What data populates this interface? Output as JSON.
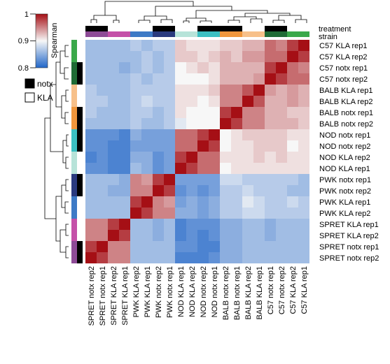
{
  "chart_data": {
    "type": "heatmap",
    "title": "",
    "metric_label": "Spearman",
    "color_scale": {
      "min": 0.8,
      "max": 1.0,
      "ticks": [
        "0.8",
        "0.9",
        "1"
      ],
      "low_color": "#2166c8",
      "mid_color": "#f7f7f7",
      "high_color": "#a50f15"
    },
    "annotation_tracks": {
      "treatment_label": "treatment",
      "strain_label": "strain"
    },
    "legend": [
      {
        "label": "notx",
        "color": "#000000"
      },
      {
        "label": "KLA",
        "color": "#ffffff"
      }
    ],
    "strain_colors": {
      "SPRET": "#8e4b97",
      "PWK": "#2a3a7e",
      "NOD": "#3bbfc2",
      "BALB": "#f0963c",
      "C57": "#3aa84a",
      "NOD_light": "#b7e3d9",
      "PWK_light": "#3d7ac6",
      "SPRET_light": "#c450a8",
      "BALB_light": "#f7c08a",
      "C57_light": "#1f6b35"
    },
    "columns": [
      {
        "label": "SPRET notx rep2",
        "strain": "SPRET",
        "treatment": "notx"
      },
      {
        "label": "SPRET notx rep1",
        "strain": "SPRET",
        "treatment": "notx"
      },
      {
        "label": "SPRET KLA rep2",
        "strain": "SPRET",
        "treatment": "KLA"
      },
      {
        "label": "SPRET KLA rep1",
        "strain": "SPRET",
        "treatment": "KLA"
      },
      {
        "label": "PWK KLA rep2",
        "strain": "PWK",
        "treatment": "KLA"
      },
      {
        "label": "PWK KLA rep1",
        "strain": "PWK",
        "treatment": "KLA"
      },
      {
        "label": "PWK notx rep2",
        "strain": "PWK",
        "treatment": "notx"
      },
      {
        "label": "PWK notx rep1",
        "strain": "PWK",
        "treatment": "notx"
      },
      {
        "label": "NOD KLA rep1",
        "strain": "NOD",
        "treatment": "KLA"
      },
      {
        "label": "NOD KLA rep2",
        "strain": "NOD",
        "treatment": "KLA"
      },
      {
        "label": "NOD notx rep2",
        "strain": "NOD",
        "treatment": "notx"
      },
      {
        "label": "NOD notx rep1",
        "strain": "NOD",
        "treatment": "notx"
      },
      {
        "label": "BALB notx rep2",
        "strain": "BALB",
        "treatment": "notx"
      },
      {
        "label": "BALB notx rep1",
        "strain": "BALB",
        "treatment": "notx"
      },
      {
        "label": "BALB KLA rep2",
        "strain": "BALB",
        "treatment": "KLA"
      },
      {
        "label": "BALB KLA rep1",
        "strain": "BALB",
        "treatment": "KLA"
      },
      {
        "label": "C57 notx rep1",
        "strain": "C57",
        "treatment": "notx"
      },
      {
        "label": "C57 notx rep2",
        "strain": "C57",
        "treatment": "notx"
      },
      {
        "label": "C57 KLA rep2",
        "strain": "C57",
        "treatment": "KLA"
      },
      {
        "label": "C57 KLA rep1",
        "strain": "C57",
        "treatment": "KLA"
      }
    ],
    "rows": [
      "C57 KLA rep1",
      "C57 KLA rep2",
      "C57 notx rep1",
      "C57 notx rep2",
      "BALB KLA rep1",
      "BALB KLA rep2",
      "BALB notx rep1",
      "BALB notx rep2",
      "NOD notx rep1",
      "NOD notx rep2",
      "NOD KLA rep2",
      "NOD KLA rep1",
      "PWK notx rep1",
      "PWK notx rep2",
      "PWK KLA rep1",
      "PWK KLA rep2",
      "SPRET KLA rep1",
      "SPRET KLA rep2",
      "SPRET notx rep1",
      "SPRET notx rep2"
    ],
    "values": [
      [
        0.86,
        0.86,
        0.86,
        0.86,
        0.87,
        0.86,
        0.87,
        0.87,
        0.92,
        0.91,
        0.91,
        0.91,
        0.92,
        0.92,
        0.93,
        0.93,
        0.96,
        0.95,
        0.98,
        1.0
      ],
      [
        0.86,
        0.86,
        0.86,
        0.86,
        0.86,
        0.87,
        0.86,
        0.87,
        0.92,
        0.92,
        0.91,
        0.92,
        0.93,
        0.92,
        0.94,
        0.94,
        0.96,
        0.96,
        1.0,
        0.98
      ],
      [
        0.86,
        0.86,
        0.86,
        0.85,
        0.86,
        0.87,
        0.86,
        0.87,
        0.9,
        0.91,
        0.92,
        0.91,
        0.93,
        0.93,
        0.93,
        0.93,
        0.98,
        1.0,
        0.96,
        0.95
      ],
      [
        0.86,
        0.86,
        0.86,
        0.86,
        0.87,
        0.86,
        0.87,
        0.87,
        0.9,
        0.9,
        0.9,
        0.91,
        0.93,
        0.93,
        0.93,
        0.94,
        1.0,
        0.98,
        0.96,
        0.96
      ],
      [
        0.87,
        0.86,
        0.86,
        0.86,
        0.87,
        0.87,
        0.87,
        0.87,
        0.91,
        0.91,
        0.91,
        0.92,
        0.95,
        0.95,
        0.97,
        1.0,
        0.94,
        0.93,
        0.94,
        0.93
      ],
      [
        0.87,
        0.87,
        0.86,
        0.86,
        0.87,
        0.88,
        0.87,
        0.87,
        0.91,
        0.91,
        0.9,
        0.91,
        0.95,
        0.95,
        1.0,
        0.97,
        0.93,
        0.93,
        0.94,
        0.93
      ],
      [
        0.87,
        0.86,
        0.86,
        0.86,
        0.87,
        0.87,
        0.86,
        0.87,
        0.91,
        0.9,
        0.9,
        0.9,
        0.98,
        1.0,
        0.95,
        0.95,
        0.93,
        0.93,
        0.92,
        0.92
      ],
      [
        0.86,
        0.86,
        0.86,
        0.86,
        0.87,
        0.86,
        0.86,
        0.87,
        0.89,
        0.9,
        0.9,
        0.9,
        1.0,
        0.98,
        0.95,
        0.95,
        0.93,
        0.93,
        0.93,
        0.92
      ],
      [
        0.83,
        0.83,
        0.83,
        0.82,
        0.85,
        0.84,
        0.84,
        0.84,
        0.96,
        0.96,
        0.98,
        1.0,
        0.9,
        0.91,
        0.92,
        0.92,
        0.92,
        0.92,
        0.91,
        0.91
      ],
      [
        0.83,
        0.83,
        0.82,
        0.82,
        0.84,
        0.84,
        0.84,
        0.84,
        0.96,
        0.96,
        1.0,
        0.98,
        0.9,
        0.91,
        0.91,
        0.92,
        0.92,
        0.92,
        0.9,
        0.91
      ],
      [
        0.82,
        0.83,
        0.82,
        0.82,
        0.85,
        0.85,
        0.83,
        0.84,
        0.98,
        1.0,
        0.96,
        0.96,
        0.91,
        0.91,
        0.91,
        0.92,
        0.91,
        0.92,
        0.91,
        0.91
      ],
      [
        0.83,
        0.83,
        0.82,
        0.82,
        0.86,
        0.85,
        0.83,
        0.84,
        1.0,
        0.98,
        0.96,
        0.96,
        0.9,
        0.91,
        0.91,
        0.91,
        0.91,
        0.91,
        0.91,
        0.91
      ],
      [
        0.86,
        0.86,
        0.86,
        0.85,
        0.95,
        0.94,
        0.98,
        1.0,
        0.84,
        0.84,
        0.84,
        0.84,
        0.88,
        0.88,
        0.87,
        0.87,
        0.87,
        0.87,
        0.87,
        0.86
      ],
      [
        0.86,
        0.86,
        0.85,
        0.85,
        0.95,
        0.95,
        1.0,
        0.98,
        0.83,
        0.84,
        0.83,
        0.84,
        0.87,
        0.87,
        0.88,
        0.87,
        0.87,
        0.87,
        0.86,
        0.86
      ],
      [
        0.86,
        0.86,
        0.86,
        0.86,
        0.98,
        1.0,
        0.95,
        0.94,
        0.84,
        0.85,
        0.84,
        0.85,
        0.87,
        0.87,
        0.89,
        0.88,
        0.87,
        0.87,
        0.88,
        0.87
      ],
      [
        0.86,
        0.86,
        0.86,
        0.86,
        1.0,
        0.98,
        0.95,
        0.95,
        0.85,
        0.85,
        0.84,
        0.85,
        0.87,
        0.87,
        0.88,
        0.88,
        0.87,
        0.87,
        0.87,
        0.87
      ],
      [
        0.95,
        0.95,
        0.98,
        1.0,
        0.86,
        0.86,
        0.85,
        0.86,
        0.82,
        0.83,
        0.83,
        0.83,
        0.85,
        0.85,
        0.86,
        0.86,
        0.85,
        0.86,
        0.86,
        0.86
      ],
      [
        0.95,
        0.95,
        1.0,
        0.98,
        0.86,
        0.86,
        0.85,
        0.86,
        0.82,
        0.83,
        0.82,
        0.83,
        0.85,
        0.85,
        0.86,
        0.86,
        0.85,
        0.86,
        0.86,
        0.86
      ],
      [
        0.98,
        1.0,
        0.95,
        0.95,
        0.86,
        0.86,
        0.86,
        0.86,
        0.83,
        0.83,
        0.82,
        0.82,
        0.85,
        0.85,
        0.86,
        0.86,
        0.86,
        0.86,
        0.86,
        0.86
      ],
      [
        1.0,
        0.98,
        0.95,
        0.95,
        0.86,
        0.86,
        0.86,
        0.86,
        0.82,
        0.82,
        0.82,
        0.83,
        0.85,
        0.85,
        0.86,
        0.86,
        0.86,
        0.86,
        0.86,
        0.86
      ]
    ]
  }
}
